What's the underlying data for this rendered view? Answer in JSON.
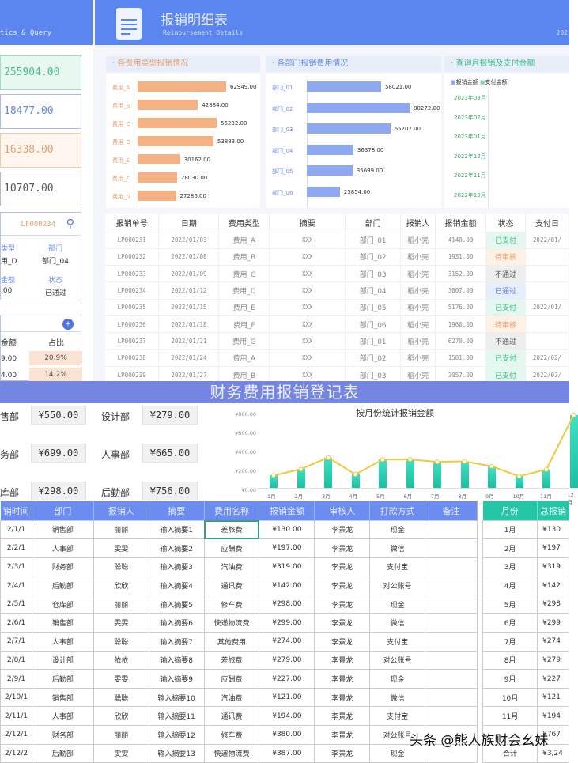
{
  "header": {
    "left_subtitle": "tics & Query",
    "title": "报销明细表",
    "subtitle": "Reimbursement Details",
    "year": "202"
  },
  "kpis": [
    {
      "value": "255904.00",
      "color": "#4fbf8f",
      "bg": "#e6f8ef",
      "border": "#9fe0c0"
    },
    {
      "value": "18477.00",
      "color": "#6a86d6",
      "bg": "#fff",
      "border": "#a9bbe8"
    },
    {
      "value": "16338.00",
      "color": "#e4a070",
      "bg": "#fff6ef",
      "border": "#f3c9aa"
    },
    {
      "value": "10707.00",
      "color": "#555",
      "bg": "#fff",
      "border": "#bbb"
    }
  ],
  "query": {
    "id": "LF000234",
    "fields": [
      {
        "label": "类型",
        "value": "用_D"
      },
      {
        "label": "部门",
        "value": "部门_04"
      },
      {
        "label": "金额",
        "value": ".00"
      },
      {
        "label": "状态",
        "value": "已通过"
      }
    ]
  },
  "percent_table": {
    "headers": [
      "金额",
      "占比"
    ],
    "rows": [
      {
        "amount": "9.00",
        "pct": "20.9%"
      },
      {
        "amount": "4.00",
        "pct": "14.2%"
      }
    ]
  },
  "sections": {
    "type_chart": "各费用类型报销情况",
    "dept_chart": "各部门报销费用情况",
    "monthly": "查询月报销及支付金额"
  },
  "monthly_legend": [
    "报销金额",
    "支付金额"
  ],
  "monthly_labels": [
    "2023年03月",
    "2023年02月",
    "2023年01月",
    "2022年12月",
    "2022年11月",
    "2022年10月"
  ],
  "chart_data": [
    {
      "type": "bar",
      "title": "各费用类型报销情况",
      "categories": [
        "费用_A",
        "费用_B",
        "费用_C",
        "费用_D",
        "费用_E",
        "费用_F",
        "费用_G"
      ],
      "values": [
        62949,
        42884,
        56232,
        53883,
        30162,
        28030,
        27286
      ],
      "labels": [
        "62949.00",
        "42884.00",
        "56232.00",
        "53883.00",
        "30162.00",
        "28030.00",
        "27286.00"
      ],
      "color": "#f4b184"
    },
    {
      "type": "bar",
      "title": "各部门报销费用情况",
      "categories": [
        "部门_01",
        "部门_02",
        "部门_03",
        "部门_04",
        "部门_05",
        "部门_06"
      ],
      "values": [
        58021,
        80272,
        65202,
        36378,
        35699,
        25854
      ],
      "labels": [
        "58021.00",
        "80272.00",
        "65202.00",
        "36378.00",
        "35699.00",
        "25854.00"
      ],
      "color": "#8fa9f0"
    },
    {
      "type": "bar",
      "title": "按月份统计报销金额",
      "categories": [
        "1月",
        "2月",
        "3月",
        "4月",
        "5月",
        "6月",
        "7月",
        "8月",
        "9月",
        "10月",
        "11月",
        "12月"
      ],
      "values": [
        130,
        197,
        319,
        142,
        298,
        299,
        274,
        279,
        227,
        121,
        194,
        767
      ],
      "yticks": [
        "¥800.00",
        "¥600.00",
        "¥400.00",
        "¥200.00",
        "¥0.00"
      ],
      "ylim": [
        0,
        800
      ]
    }
  ],
  "detail_table": {
    "headers": [
      "报销单号",
      "日期",
      "费用类型",
      "摘要",
      "部门",
      "报销人",
      "报销金额",
      "状态",
      "支付日"
    ],
    "rows": [
      [
        "LP000231",
        "2022/01/03",
        "费用_A",
        "XXX",
        "部门_01",
        "稻小壳",
        "4140.00",
        "已支付",
        "2022/01/"
      ],
      [
        "LP000232",
        "2022/01/08",
        "费用_B",
        "XXX",
        "部门_02",
        "稻小壳",
        "1931.00",
        "待审核",
        ""
      ],
      [
        "LP000233",
        "2022/01/09",
        "费用_C",
        "XXX",
        "部门_03",
        "稻小壳",
        "3152.00",
        "不通过",
        ""
      ],
      [
        "LP000234",
        "2022/01/12",
        "费用_D",
        "XXX",
        "部门_04",
        "稻小壳",
        "3007.00",
        "已通过",
        ""
      ],
      [
        "LP000235",
        "2022/01/15",
        "费用_E",
        "XXX",
        "部门_05",
        "稻小壳",
        "5176.00",
        "已支付",
        "2022/01/"
      ],
      [
        "LP000236",
        "2022/01/18",
        "费用_F",
        "XXX",
        "部门_06",
        "稻小壳",
        "1960.00",
        "待审核",
        ""
      ],
      [
        "LP000237",
        "2022/01/21",
        "费用_G",
        "XXX",
        "部门_01",
        "稻小壳",
        "6270.00",
        "不通过",
        ""
      ],
      [
        "LP000238",
        "2022/01/24",
        "费用_A",
        "XXX",
        "部门_02",
        "稻小壳",
        "1501.00",
        "已支付",
        "2022/02/"
      ],
      [
        "LP000239",
        "2022/01/27",
        "费用_B",
        "XXX",
        "部门_03",
        "稻小壳",
        "2057.00",
        "已支付",
        "2022/02/"
      ]
    ]
  },
  "status_colors": {
    "已支付": [
      "#3cbf8a",
      "#e3f8ef"
    ],
    "待审核": [
      "#f0a070",
      "#fff1e6"
    ],
    "不通过": [
      "#555",
      "#eeeeee"
    ],
    "已通过": [
      "#5a7ee0",
      "#e6edfc"
    ]
  },
  "register": {
    "title": "财务费用报销登记表",
    "dept_totals": [
      {
        "name": "售部",
        "value": "¥550.00"
      },
      {
        "name": "设计部",
        "value": "¥279.00"
      },
      {
        "name": "务部",
        "value": "¥699.00"
      },
      {
        "name": "人事部",
        "value": "¥665.00"
      },
      {
        "name": "库部",
        "value": "¥298.00"
      },
      {
        "name": "后勤部",
        "value": "¥756.00"
      }
    ],
    "headers": [
      "销时间",
      "部门",
      "报销人",
      "摘要",
      "费用名称",
      "报销金额",
      "审核人",
      "打款方式",
      "备注"
    ],
    "rows": [
      [
        "2/1/1",
        "销售部",
        "丽丽",
        "输入摘要1",
        "差旅费",
        "¥130.00",
        "李景龙",
        "现金",
        ""
      ],
      [
        "2/2/1",
        "人事部",
        "雯雯",
        "输入摘要2",
        "应酬费",
        "¥197.00",
        "李景龙",
        "微信",
        ""
      ],
      [
        "2/3/1",
        "财务部",
        "聪聪",
        "输入摘要3",
        "汽油费",
        "¥319.00",
        "李景龙",
        "支付宝",
        ""
      ],
      [
        "2/4/1",
        "后勤部",
        "欣欣",
        "输入摘要4",
        "通讯费",
        "¥142.00",
        "李景龙",
        "对公账号",
        ""
      ],
      [
        "2/5/1",
        "仓库部",
        "丽丽",
        "输入摘要5",
        "修车费",
        "¥298.00",
        "李景龙",
        "现金",
        ""
      ],
      [
        "2/6/1",
        "销售部",
        "雯雯",
        "输入摘要6",
        "快递物流费",
        "¥299.00",
        "李景龙",
        "微信",
        ""
      ],
      [
        "2/7/1",
        "人事部",
        "聪聪",
        "输入摘要7",
        "其他费用",
        "¥274.00",
        "李景龙",
        "支付宝",
        ""
      ],
      [
        "2/8/1",
        "设计部",
        "依依",
        "输入摘要8",
        "差旅费",
        "¥279.00",
        "李景龙",
        "对公账号",
        ""
      ],
      [
        "2/9/1",
        "后勤部",
        "雯雯",
        "输入摘要9",
        "应酬费",
        "¥227.00",
        "李景龙",
        "现金",
        ""
      ],
      [
        "2/10/1",
        "销售部",
        "聪聪",
        "输入摘要10",
        "汽油费",
        "¥121.00",
        "李景龙",
        "微信",
        ""
      ],
      [
        "2/11/1",
        "人事部",
        "欣欣",
        "输入摘要11",
        "通讯费",
        "¥194.00",
        "李景龙",
        "支付宝",
        ""
      ],
      [
        "2/12/1",
        "财务部",
        "丽丽",
        "输入摘要12",
        "修车费",
        "¥380.00",
        "李景龙",
        "对公账号",
        ""
      ],
      [
        "2/12/2",
        "后勤部",
        "雯雯",
        "输入摘要13",
        "快递物流费",
        "¥387.00",
        "李景龙",
        "现金",
        ""
      ]
    ]
  },
  "month_table": {
    "headers": [
      "月份",
      "总报销"
    ],
    "rows": [
      [
        "1月",
        "¥130"
      ],
      [
        "2月",
        "¥197"
      ],
      [
        "3月",
        "¥319"
      ],
      [
        "4月",
        "¥142"
      ],
      [
        "5月",
        "¥298"
      ],
      [
        "6月",
        "¥299"
      ],
      [
        "7月",
        "¥274"
      ],
      [
        "8月",
        "¥279"
      ],
      [
        "9月",
        "¥227"
      ],
      [
        "10月",
        "¥121"
      ],
      [
        "11月",
        "¥194"
      ],
      [
        "",
        "¥767"
      ],
      [
        "合计",
        "¥3,24"
      ]
    ]
  },
  "watermark": "头条 @熊人族财会幺妹"
}
